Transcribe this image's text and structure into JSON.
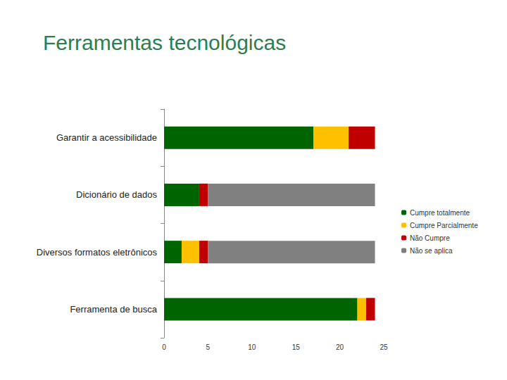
{
  "chart_data": {
    "type": "bar",
    "title": "Ferramentas tecnológicas",
    "orientation": "horizontal",
    "stacked": true,
    "categories": [
      "Garantir a acessibilidade",
      "Dicionário de dados",
      "Diversos formatos eletrônicos",
      "Ferramenta de busca"
    ],
    "series": [
      {
        "name": "Cumpre totalmente",
        "color": "#006400",
        "values": [
          17,
          4,
          2,
          22
        ]
      },
      {
        "name": "Cumpre Parcialmente",
        "color": "#ffc000",
        "values": [
          4,
          0,
          2,
          1
        ]
      },
      {
        "name": "Não Cumpre",
        "color": "#c00000",
        "values": [
          3,
          1,
          1,
          1
        ]
      },
      {
        "name": "Não se aplica",
        "color": "#808080",
        "values": [
          0,
          19,
          19,
          0
        ]
      }
    ],
    "xlim": [
      0,
      25
    ],
    "xticks": [
      0,
      5,
      10,
      15,
      20,
      25
    ],
    "grid": false,
    "legend": "right"
  }
}
